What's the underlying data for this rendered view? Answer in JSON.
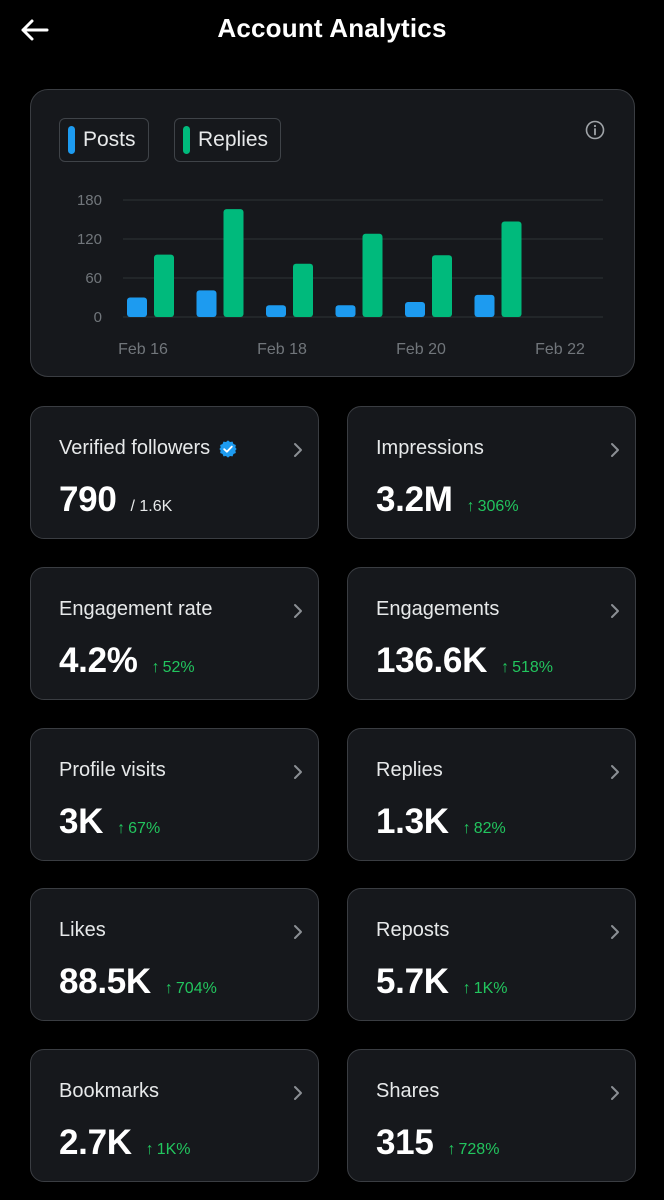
{
  "header": {
    "title": "Account Analytics"
  },
  "chart_data": {
    "type": "bar",
    "categories": [
      "Feb 16",
      "Feb 17",
      "Feb 18",
      "Feb 19",
      "Feb 20",
      "Feb 21"
    ],
    "series": [
      {
        "name": "Posts",
        "values": [
          30,
          41,
          18,
          18,
          23,
          34
        ]
      },
      {
        "name": "Replies",
        "values": [
          96,
          166,
          82,
          128,
          95,
          147
        ]
      }
    ],
    "x_tick_labels": [
      "Feb 16",
      "Feb 18",
      "Feb 20",
      "Feb 22"
    ],
    "y_ticks": [
      "180",
      "120",
      "60",
      "0"
    ],
    "ylim": [
      0,
      180
    ],
    "grid": true,
    "legend_position": "top-left",
    "colors": {
      "Posts": "#1d9bf0",
      "Replies": "#00ba7c"
    }
  },
  "stats": [
    {
      "label": "Verified followers",
      "value": "790",
      "sub": "/ 1.6K",
      "verified": true
    },
    {
      "label": "Impressions",
      "value": "3.2M",
      "change": "306%"
    },
    {
      "label": "Engagement rate",
      "value": "4.2%",
      "change": "52%"
    },
    {
      "label": "Engagements",
      "value": "136.6K",
      "change": "518%"
    },
    {
      "label": "Profile visits",
      "value": "3K",
      "change": "67%"
    },
    {
      "label": "Replies",
      "value": "1.3K",
      "change": "82%"
    },
    {
      "label": "Likes",
      "value": "88.5K",
      "change": "704%"
    },
    {
      "label": "Reposts",
      "value": "5.7K",
      "change": "1K%"
    },
    {
      "label": "Bookmarks",
      "value": "2.7K",
      "change": "1K%"
    },
    {
      "label": "Shares",
      "value": "315",
      "change": "728%"
    }
  ],
  "icons": {
    "back": "arrow-left-icon",
    "info": "info-icon",
    "chevron": "chevron-right-icon",
    "verified": "verified-badge-icon"
  },
  "colors": {
    "positive": "#22c55e",
    "card_bg": "#16181c",
    "border": "#3a3d42"
  }
}
